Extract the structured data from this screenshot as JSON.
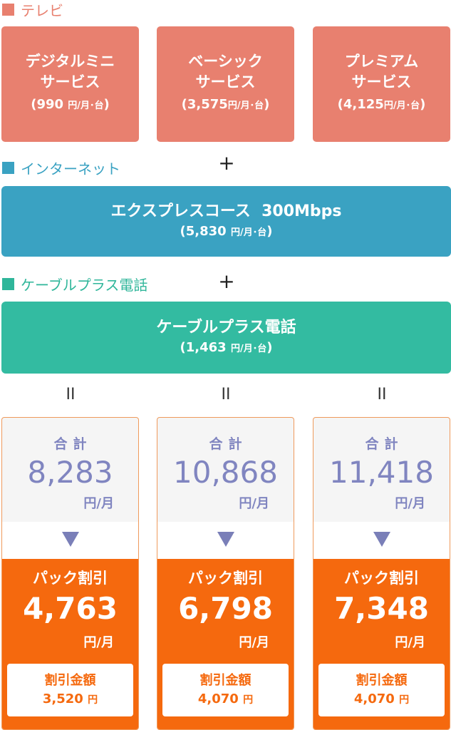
{
  "sections": {
    "tv": "テレビ",
    "internet": "インターネット",
    "phone": "ケーブルプラス電話"
  },
  "plus": "+",
  "equals": "II",
  "tv_plans": [
    {
      "name1": "デジタルミニ",
      "name2": "サービス",
      "price_open": "(990 ",
      "price_unit": "円/月･台",
      "price_close": ")"
    },
    {
      "name1": "ベーシック",
      "name2": "サービス",
      "price_open": "(3,575",
      "price_unit": "円/月･台",
      "price_close": ")"
    },
    {
      "name1": "プレミアム",
      "name2": "サービス",
      "price_open": "(4,125",
      "price_unit": "円/月･台",
      "price_close": ")"
    }
  ],
  "internet_plan": {
    "name": "エクスプレスコース  300Mbps",
    "price_open": "(5,830 ",
    "price_unit": "円/月･台",
    "price_close": ")"
  },
  "phone_plan": {
    "name": "ケーブルプラス電話",
    "price_open": "(1,463 ",
    "price_unit": "円/月･台",
    "price_close": ")"
  },
  "totals": [
    {
      "label": "合計",
      "value": "8,283",
      "unit": "円/月",
      "disc_label": "パック割引",
      "disc_value": "4,763",
      "disc_unit": "円/月",
      "save_label": "割引金額",
      "save_value": "3,520 ",
      "save_unit": "円"
    },
    {
      "label": "合計",
      "value": "10,868",
      "unit": "円/月",
      "disc_label": "パック割引",
      "disc_value": "6,798",
      "disc_unit": "円/月",
      "save_label": "割引金額",
      "save_value": "4,070 ",
      "save_unit": "円"
    },
    {
      "label": "合計",
      "value": "11,418",
      "unit": "円/月",
      "disc_label": "パック割引",
      "disc_value": "7,348",
      "disc_unit": "円/月",
      "save_label": "割引金額",
      "save_value": "4,070 ",
      "save_unit": "円"
    }
  ],
  "colors": {
    "tv": "#e8806f",
    "internet": "#3aa2c2",
    "phone": "#33bba1",
    "total_text": "#8085c0",
    "discount": "#f5690e"
  }
}
